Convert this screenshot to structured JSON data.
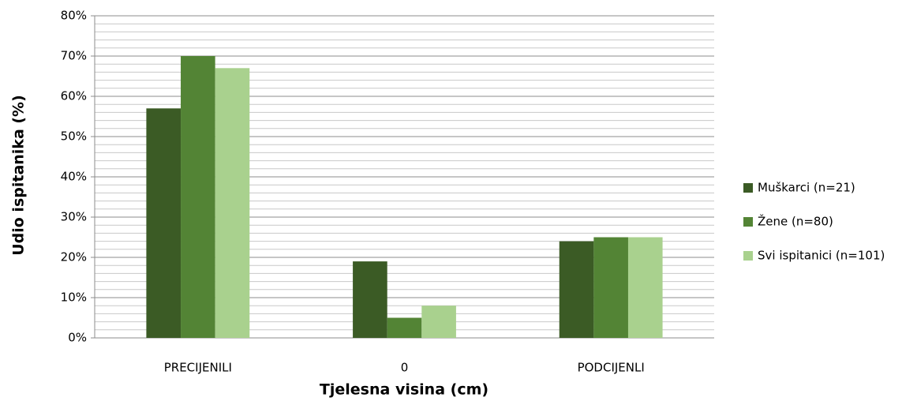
{
  "chart_data": {
    "type": "bar",
    "x_label": "Tjelesna visina (cm)",
    "y_label": "Udio ispitanika (%)",
    "categories": [
      "PRECIJENILI",
      "0",
      "PODCIJENLI"
    ],
    "series": [
      {
        "name": "Muškarci (n=21)",
        "color": "#3b5b25",
        "values": [
          57,
          19,
          24
        ]
      },
      {
        "name": "Žene (n=80)",
        "color": "#538435",
        "values": [
          70,
          5,
          25
        ]
      },
      {
        "name": "Svi ispitanici (n=101)",
        "color": "#a9d18e",
        "values": [
          67,
          8,
          25
        ]
      }
    ],
    "ylim": [
      0,
      80
    ],
    "yticks": [
      {
        "value": 0,
        "label": "0%"
      },
      {
        "value": 10,
        "label": "10%"
      },
      {
        "value": 20,
        "label": "20%"
      },
      {
        "value": 30,
        "label": "30%"
      },
      {
        "value": 40,
        "label": "40%"
      },
      {
        "value": 50,
        "label": "50%"
      },
      {
        "value": 60,
        "label": "60%"
      },
      {
        "value": 70,
        "label": "70%"
      },
      {
        "value": 80,
        "label": "80%"
      }
    ],
    "minor_yticks": [
      2,
      4,
      6,
      8,
      12,
      14,
      16,
      18,
      22,
      24,
      26,
      28,
      32,
      34,
      36,
      38,
      42,
      44,
      46,
      48,
      52,
      54,
      56,
      58,
      62,
      64,
      66,
      68,
      72,
      74,
      76,
      78
    ],
    "grid": true,
    "legend": "right"
  }
}
